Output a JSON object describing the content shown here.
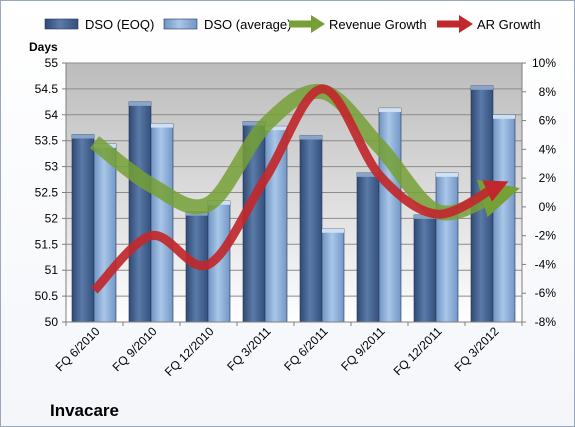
{
  "chart_data": {
    "type": "bar",
    "title": "",
    "brand_label": "Invacare",
    "categories": [
      "FQ 6/2010",
      "FQ 9/2010",
      "FQ 12/2010",
      "FQ 3/2011",
      "FQ 6/2011",
      "FQ 9/2011",
      "FQ 12/2011",
      "FQ 3/2012"
    ],
    "bar_series": [
      {
        "name": "DSO (EOQ)",
        "values": [
          53.62,
          54.25,
          52.13,
          53.87,
          53.6,
          52.88,
          52.07,
          54.56
        ],
        "color": "#4f6e9c"
      },
      {
        "name": "DSO (average)",
        "values": [
          53.44,
          53.83,
          52.34,
          53.78,
          51.8,
          54.13,
          52.88,
          54.0
        ],
        "color": "#8fb2da"
      }
    ],
    "line_series": [
      {
        "name": "Revenue Growth",
        "values": [
          4.5,
          1.5,
          0.2,
          5.7,
          8.0,
          4.2,
          -0.3,
          0.8
        ],
        "color": "#76a035"
      },
      {
        "name": "AR Growth",
        "values": [
          -5.8,
          -2.0,
          -4.0,
          2.0,
          8.2,
          2.2,
          -0.5,
          1.3
        ],
        "color": "#c0282d"
      }
    ],
    "y_left": {
      "label": "Days",
      "min": 50,
      "max": 55,
      "ticks": [
        50,
        50.5,
        51,
        51.5,
        52,
        52.5,
        53,
        53.5,
        54,
        54.5,
        55
      ]
    },
    "y_right": {
      "label": "",
      "min": -8,
      "max": 10,
      "ticks": [
        "-8%",
        "-6%",
        "-4%",
        "-2%",
        "0%",
        "2%",
        "4%",
        "6%",
        "8%",
        "10%"
      ]
    },
    "legend_position": "top",
    "grid": true
  }
}
